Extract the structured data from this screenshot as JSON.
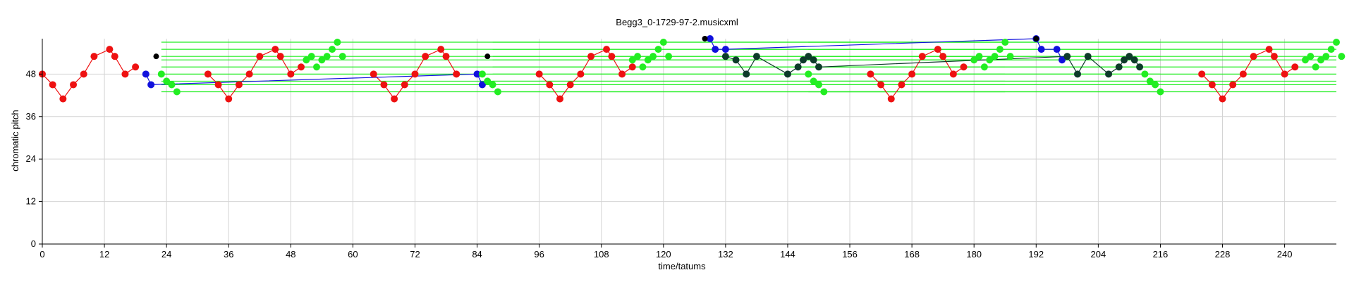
{
  "chart_data": {
    "type": "scatter",
    "title": "Begg3_0-1729-97-2.musicxml",
    "xlabel": "time/tatums",
    "ylabel": "chromatic pitch",
    "xlim": [
      0,
      250
    ],
    "ylim": [
      0,
      58
    ],
    "x_ticks": [
      0,
      12,
      24,
      36,
      48,
      60,
      72,
      84,
      96,
      108,
      120,
      132,
      144,
      156,
      168,
      180,
      192,
      204,
      216,
      228,
      240
    ],
    "y_ticks": [
      0,
      12,
      24,
      36,
      48
    ],
    "grid": true,
    "colors": {
      "red": "#ee1111",
      "blue": "#1111dd",
      "green": "#22ee22",
      "black": "#000000",
      "dark": "#0d3b2a",
      "grid": "#d4d4d4"
    },
    "series": [
      {
        "color": "red",
        "points": [
          [
            0,
            48
          ],
          [
            2,
            45
          ],
          [
            4,
            41
          ],
          [
            6,
            45
          ],
          [
            8,
            48
          ],
          [
            10,
            53
          ],
          [
            13,
            55
          ],
          [
            14,
            53
          ],
          [
            16,
            48
          ],
          [
            18,
            50
          ]
        ]
      },
      {
        "color": "red",
        "points": [
          [
            32,
            48
          ],
          [
            34,
            45
          ],
          [
            36,
            41
          ],
          [
            38,
            45
          ],
          [
            40,
            48
          ],
          [
            42,
            53
          ],
          [
            45,
            55
          ],
          [
            46,
            53
          ],
          [
            48,
            48
          ],
          [
            50,
            50
          ]
        ]
      },
      {
        "color": "red",
        "points": [
          [
            64,
            48
          ],
          [
            66,
            45
          ],
          [
            68,
            41
          ],
          [
            70,
            45
          ],
          [
            72,
            48
          ],
          [
            74,
            53
          ],
          [
            77,
            55
          ],
          [
            78,
            53
          ],
          [
            80,
            48
          ]
        ]
      },
      {
        "color": "red",
        "points": [
          [
            96,
            48
          ],
          [
            98,
            45
          ],
          [
            100,
            41
          ],
          [
            102,
            45
          ],
          [
            104,
            48
          ],
          [
            106,
            53
          ],
          [
            109,
            55
          ],
          [
            110,
            53
          ],
          [
            112,
            48
          ],
          [
            114,
            50
          ]
        ]
      },
      {
        "color": "red",
        "points": [
          [
            160,
            48
          ],
          [
            162,
            45
          ],
          [
            164,
            41
          ],
          [
            166,
            45
          ],
          [
            168,
            48
          ],
          [
            170,
            53
          ],
          [
            173,
            55
          ],
          [
            174,
            53
          ],
          [
            176,
            48
          ],
          [
            178,
            50
          ]
        ]
      },
      {
        "color": "red",
        "points": [
          [
            224,
            48
          ],
          [
            226,
            45
          ],
          [
            228,
            41
          ],
          [
            230,
            45
          ],
          [
            232,
            48
          ],
          [
            234,
            53
          ],
          [
            237,
            55
          ],
          [
            238,
            53
          ],
          [
            240,
            48
          ],
          [
            242,
            50
          ]
        ]
      },
      {
        "color": "blue",
        "points": [
          [
            20,
            48
          ],
          [
            21,
            45
          ],
          [
            84,
            48
          ],
          [
            85,
            45
          ]
        ]
      },
      {
        "color": "blue",
        "points": [
          [
            129,
            58
          ],
          [
            130,
            55
          ],
          [
            132,
            55
          ],
          [
            192,
            58
          ],
          [
            193,
            55
          ],
          [
            196,
            55
          ],
          [
            197,
            52
          ]
        ]
      },
      {
        "color": "green",
        "points": [
          [
            23,
            48
          ],
          [
            24,
            46
          ],
          [
            25,
            45
          ],
          [
            26,
            43
          ],
          [
            51,
            52
          ],
          [
            52,
            53
          ],
          [
            53,
            50
          ],
          [
            54,
            52
          ],
          [
            55,
            53
          ],
          [
            56,
            55
          ],
          [
            57,
            57
          ],
          [
            58,
            53
          ],
          [
            85,
            48
          ],
          [
            86,
            46
          ],
          [
            87,
            45
          ],
          [
            88,
            43
          ],
          [
            114,
            52
          ],
          [
            115,
            53
          ],
          [
            116,
            50
          ],
          [
            117,
            52
          ],
          [
            118,
            53
          ],
          [
            119,
            55
          ],
          [
            120,
            57
          ],
          [
            121,
            53
          ],
          [
            148,
            48
          ],
          [
            149,
            46
          ],
          [
            150,
            45
          ],
          [
            151,
            43
          ],
          [
            180,
            52
          ],
          [
            181,
            53
          ],
          [
            182,
            50
          ],
          [
            183,
            52
          ],
          [
            184,
            53
          ],
          [
            185,
            55
          ],
          [
            186,
            57
          ],
          [
            187,
            53
          ],
          [
            213,
            48
          ],
          [
            214,
            46
          ],
          [
            215,
            45
          ],
          [
            216,
            43
          ],
          [
            244,
            52
          ],
          [
            245,
            53
          ],
          [
            246,
            50
          ],
          [
            247,
            52
          ],
          [
            248,
            53
          ],
          [
            249,
            55
          ],
          [
            250,
            57
          ],
          [
            251,
            53
          ]
        ]
      },
      {
        "color": "black",
        "points": [
          [
            22,
            53
          ],
          [
            86,
            53
          ],
          [
            128,
            58
          ],
          [
            192,
            58
          ]
        ]
      },
      {
        "color": "dark",
        "points": [
          [
            132,
            53
          ],
          [
            134,
            52
          ],
          [
            136,
            48
          ],
          [
            138,
            53
          ],
          [
            144,
            48
          ],
          [
            146,
            50
          ],
          [
            147,
            52
          ],
          [
            148,
            53
          ],
          [
            149,
            52
          ],
          [
            150,
            50
          ],
          [
            198,
            53
          ],
          [
            200,
            48
          ],
          [
            202,
            53
          ],
          [
            206,
            48
          ],
          [
            208,
            50
          ],
          [
            209,
            52
          ],
          [
            210,
            53
          ],
          [
            211,
            52
          ],
          [
            212,
            50
          ]
        ]
      }
    ],
    "sustain_lines": {
      "color": "green",
      "segments": [
        [
          23,
          186,
          57
        ],
        [
          23,
          186,
          55
        ],
        [
          23,
          186,
          53
        ],
        [
          23,
          186,
          52
        ],
        [
          23,
          186,
          50
        ],
        [
          23,
          186,
          48
        ],
        [
          23,
          186,
          46
        ],
        [
          23,
          186,
          45
        ],
        [
          23,
          186,
          43
        ],
        [
          87,
          216,
          57
        ],
        [
          87,
          216,
          55
        ],
        [
          87,
          216,
          53
        ],
        [
          87,
          216,
          52
        ],
        [
          87,
          216,
          50
        ],
        [
          87,
          216,
          48
        ],
        [
          87,
          216,
          46
        ],
        [
          87,
          216,
          45
        ],
        [
          87,
          216,
          43
        ],
        [
          148,
          250,
          57
        ],
        [
          148,
          250,
          55
        ],
        [
          148,
          250,
          53
        ],
        [
          148,
          250,
          52
        ],
        [
          148,
          250,
          50
        ],
        [
          148,
          250,
          48
        ],
        [
          148,
          250,
          46
        ],
        [
          148,
          250,
          45
        ],
        [
          148,
          250,
          43
        ]
      ]
    }
  }
}
